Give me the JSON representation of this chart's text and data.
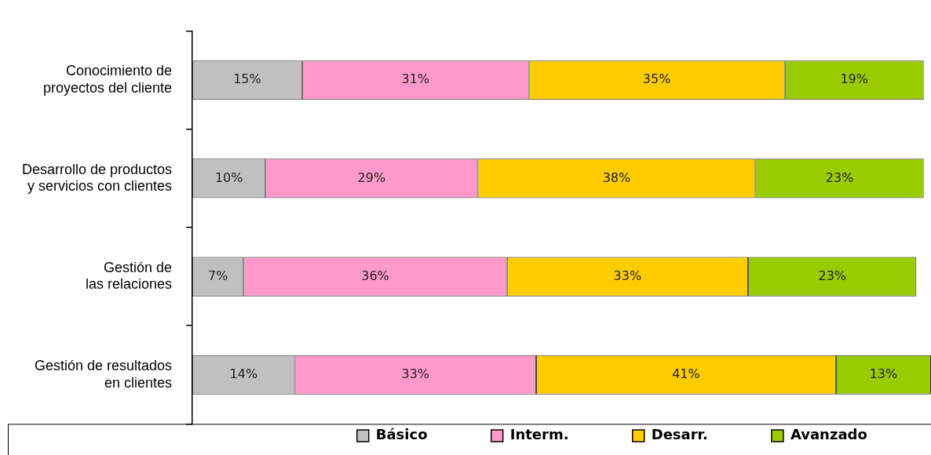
{
  "chart_data": {
    "type": "bar",
    "orientation": "horizontal",
    "stacked": true,
    "data_labels": false,
    "legend": "bottom",
    "grid": false,
    "categories": [
      "Conocimiento de proyectos del cliente",
      "Desarrollo de productos y servicios con clientes",
      "Gestión de las relaciones",
      "Gestión de resultados en clientes"
    ],
    "series": [
      {
        "name": "Básico",
        "color": "#c0c0c0",
        "values": [
          15,
          10,
          7,
          14
        ],
        "value_labels": [
          "15%",
          "10%",
          "7%",
          "14%"
        ]
      },
      {
        "name": "Interm.",
        "color": "#ff99cc",
        "values": [
          31,
          29,
          36,
          33
        ],
        "value_labels": [
          "31%",
          "29%",
          "36%",
          "33%"
        ]
      },
      {
        "name": "Desarr.",
        "color": "#ffcc00",
        "values": [
          35,
          38,
          33,
          41
        ],
        "value_labels": [
          "35%",
          "38%",
          "33%",
          "41%"
        ]
      },
      {
        "name": "Avanzado",
        "color": "#99cc00",
        "values": [
          19,
          23,
          23,
          13
        ],
        "value_labels": [
          "19%",
          "23%",
          "23%",
          "13%"
        ]
      }
    ]
  }
}
